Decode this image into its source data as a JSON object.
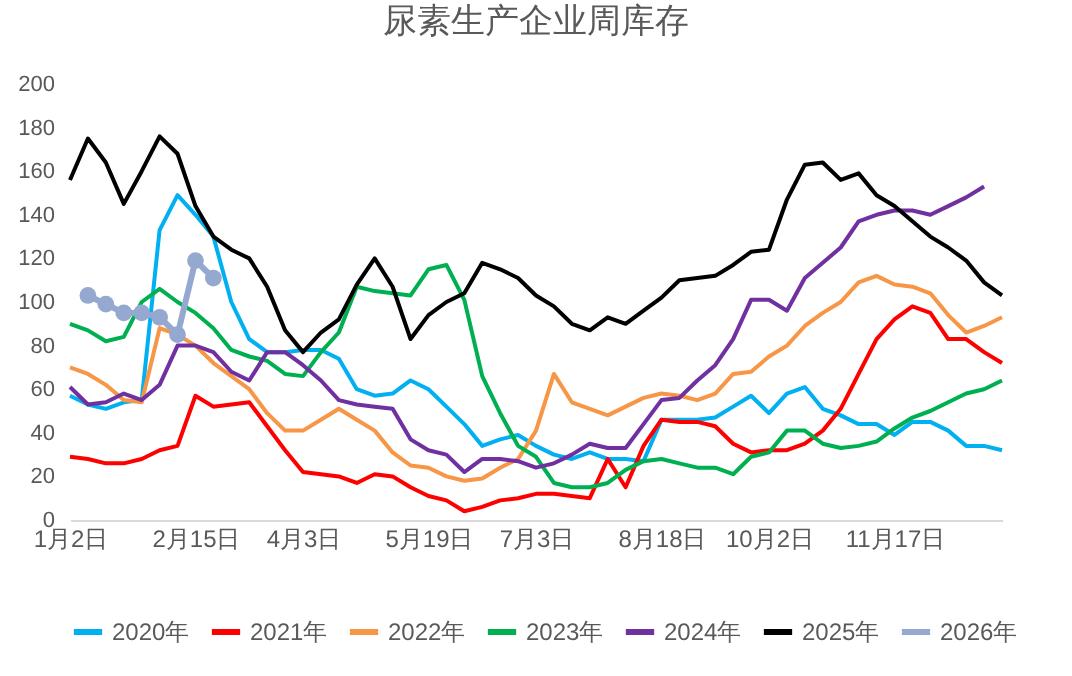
{
  "chart_data": {
    "type": "line",
    "title": "尿素生产企业周库存",
    "categories": [
      "1月2日",
      null,
      null,
      null,
      null,
      null,
      null,
      "2月15日",
      null,
      null,
      null,
      null,
      null,
      "4月3日",
      null,
      null,
      null,
      null,
      null,
      null,
      "5月19日",
      null,
      null,
      null,
      null,
      null,
      "7月3日",
      null,
      null,
      null,
      null,
      null,
      null,
      "8月18日",
      null,
      null,
      null,
      null,
      null,
      "10月2日",
      null,
      null,
      null,
      null,
      null,
      null,
      "11月17日",
      null,
      null,
      null,
      null,
      null,
      null
    ],
    "ylim": [
      0,
      200
    ],
    "yticks": [
      0,
      20,
      40,
      60,
      80,
      100,
      120,
      140,
      160,
      180,
      200
    ],
    "grid": false,
    "legend": "bottom",
    "series": [
      {
        "name": "2020年",
        "color": "#00b0f0",
        "values": [
          57,
          53,
          51,
          54,
          55,
          133,
          149,
          140,
          130,
          100,
          83,
          77,
          77,
          78,
          78,
          74,
          60,
          57,
          58,
          64,
          60,
          52,
          44,
          34,
          37,
          39,
          34,
          30,
          28,
          31,
          28,
          28,
          27,
          46,
          46,
          46,
          47,
          52,
          57,
          49,
          58,
          61,
          51,
          48,
          44,
          44,
          39,
          45,
          45,
          41,
          34,
          34,
          32
        ]
      },
      {
        "name": "2021年",
        "color": "#ff0000",
        "values": [
          29,
          28,
          26,
          26,
          28,
          32,
          34,
          57,
          52,
          53,
          54,
          43,
          32,
          22,
          21,
          20,
          17,
          21,
          20,
          15,
          11,
          9,
          4,
          6,
          9,
          10,
          12,
          12,
          11,
          10,
          28,
          15,
          34,
          46,
          45,
          45,
          43,
          35,
          31,
          32,
          32,
          35,
          41,
          51,
          67,
          83,
          92,
          98,
          95,
          83,
          83,
          77,
          72
        ]
      },
      {
        "name": "2022年",
        "color": "#f79646",
        "values": [
          70,
          67,
          62,
          55,
          54,
          88,
          85,
          80,
          72,
          66,
          60,
          49,
          41,
          41,
          46,
          51,
          46,
          41,
          31,
          25,
          24,
          20,
          18,
          19,
          24,
          28,
          41,
          67,
          54,
          51,
          48,
          52,
          56,
          58,
          57,
          55,
          58,
          67,
          68,
          75,
          80,
          89,
          95,
          100,
          109,
          112,
          108,
          107,
          104,
          94,
          86,
          89,
          93
        ]
      },
      {
        "name": "2023年",
        "color": "#00b050",
        "values": [
          90,
          87,
          82,
          84,
          100,
          106,
          100,
          95,
          88,
          78,
          75,
          73,
          67,
          66,
          77,
          86,
          107,
          105,
          104,
          103,
          115,
          117,
          101,
          66,
          49,
          34,
          29,
          17,
          15,
          15,
          17,
          23,
          27,
          28,
          26,
          24,
          24,
          21,
          29,
          31,
          41,
          41,
          35,
          33,
          34,
          36,
          42,
          47,
          50,
          54,
          58,
          60,
          64
        ]
      },
      {
        "name": "2024年",
        "color": "#7030a0",
        "values": [
          61,
          53,
          54,
          58,
          55,
          62,
          80,
          80,
          77,
          68,
          64,
          77,
          77,
          71,
          64,
          55,
          53,
          52,
          51,
          37,
          32,
          30,
          22,
          28,
          28,
          27,
          24,
          26,
          30,
          35,
          33,
          33,
          44,
          55,
          56,
          64,
          71,
          83,
          101,
          101,
          96,
          111,
          118,
          125,
          137,
          140,
          142,
          142,
          140,
          144,
          148,
          153,
          null
        ]
      },
      {
        "name": "2025年",
        "color": "#000000",
        "values": [
          156,
          175,
          164,
          145,
          160,
          176,
          168,
          144,
          130,
          124,
          120,
          107,
          87,
          77,
          86,
          92,
          108,
          120,
          107,
          83,
          94,
          100,
          104,
          118,
          115,
          111,
          103,
          98,
          90,
          87,
          93,
          90,
          96,
          102,
          110,
          111,
          112,
          117,
          123,
          124,
          147,
          163,
          164,
          156,
          159,
          149,
          144,
          137,
          130,
          125,
          119,
          109,
          103
        ]
      },
      {
        "name": "2026年",
        "color": "#95a9d0",
        "marker": "circle",
        "values": [
          null,
          103,
          99,
          95,
          95,
          93,
          85,
          119,
          111,
          null,
          null,
          null,
          null,
          null,
          null,
          null,
          null,
          null,
          null,
          null,
          null,
          null,
          null,
          null,
          null,
          null,
          null,
          null,
          null,
          null,
          null,
          null,
          null,
          null,
          null,
          null,
          null,
          null,
          null,
          null,
          null,
          null,
          null,
          null,
          null,
          null,
          null,
          null,
          null,
          null,
          null,
          null,
          null
        ]
      }
    ]
  }
}
